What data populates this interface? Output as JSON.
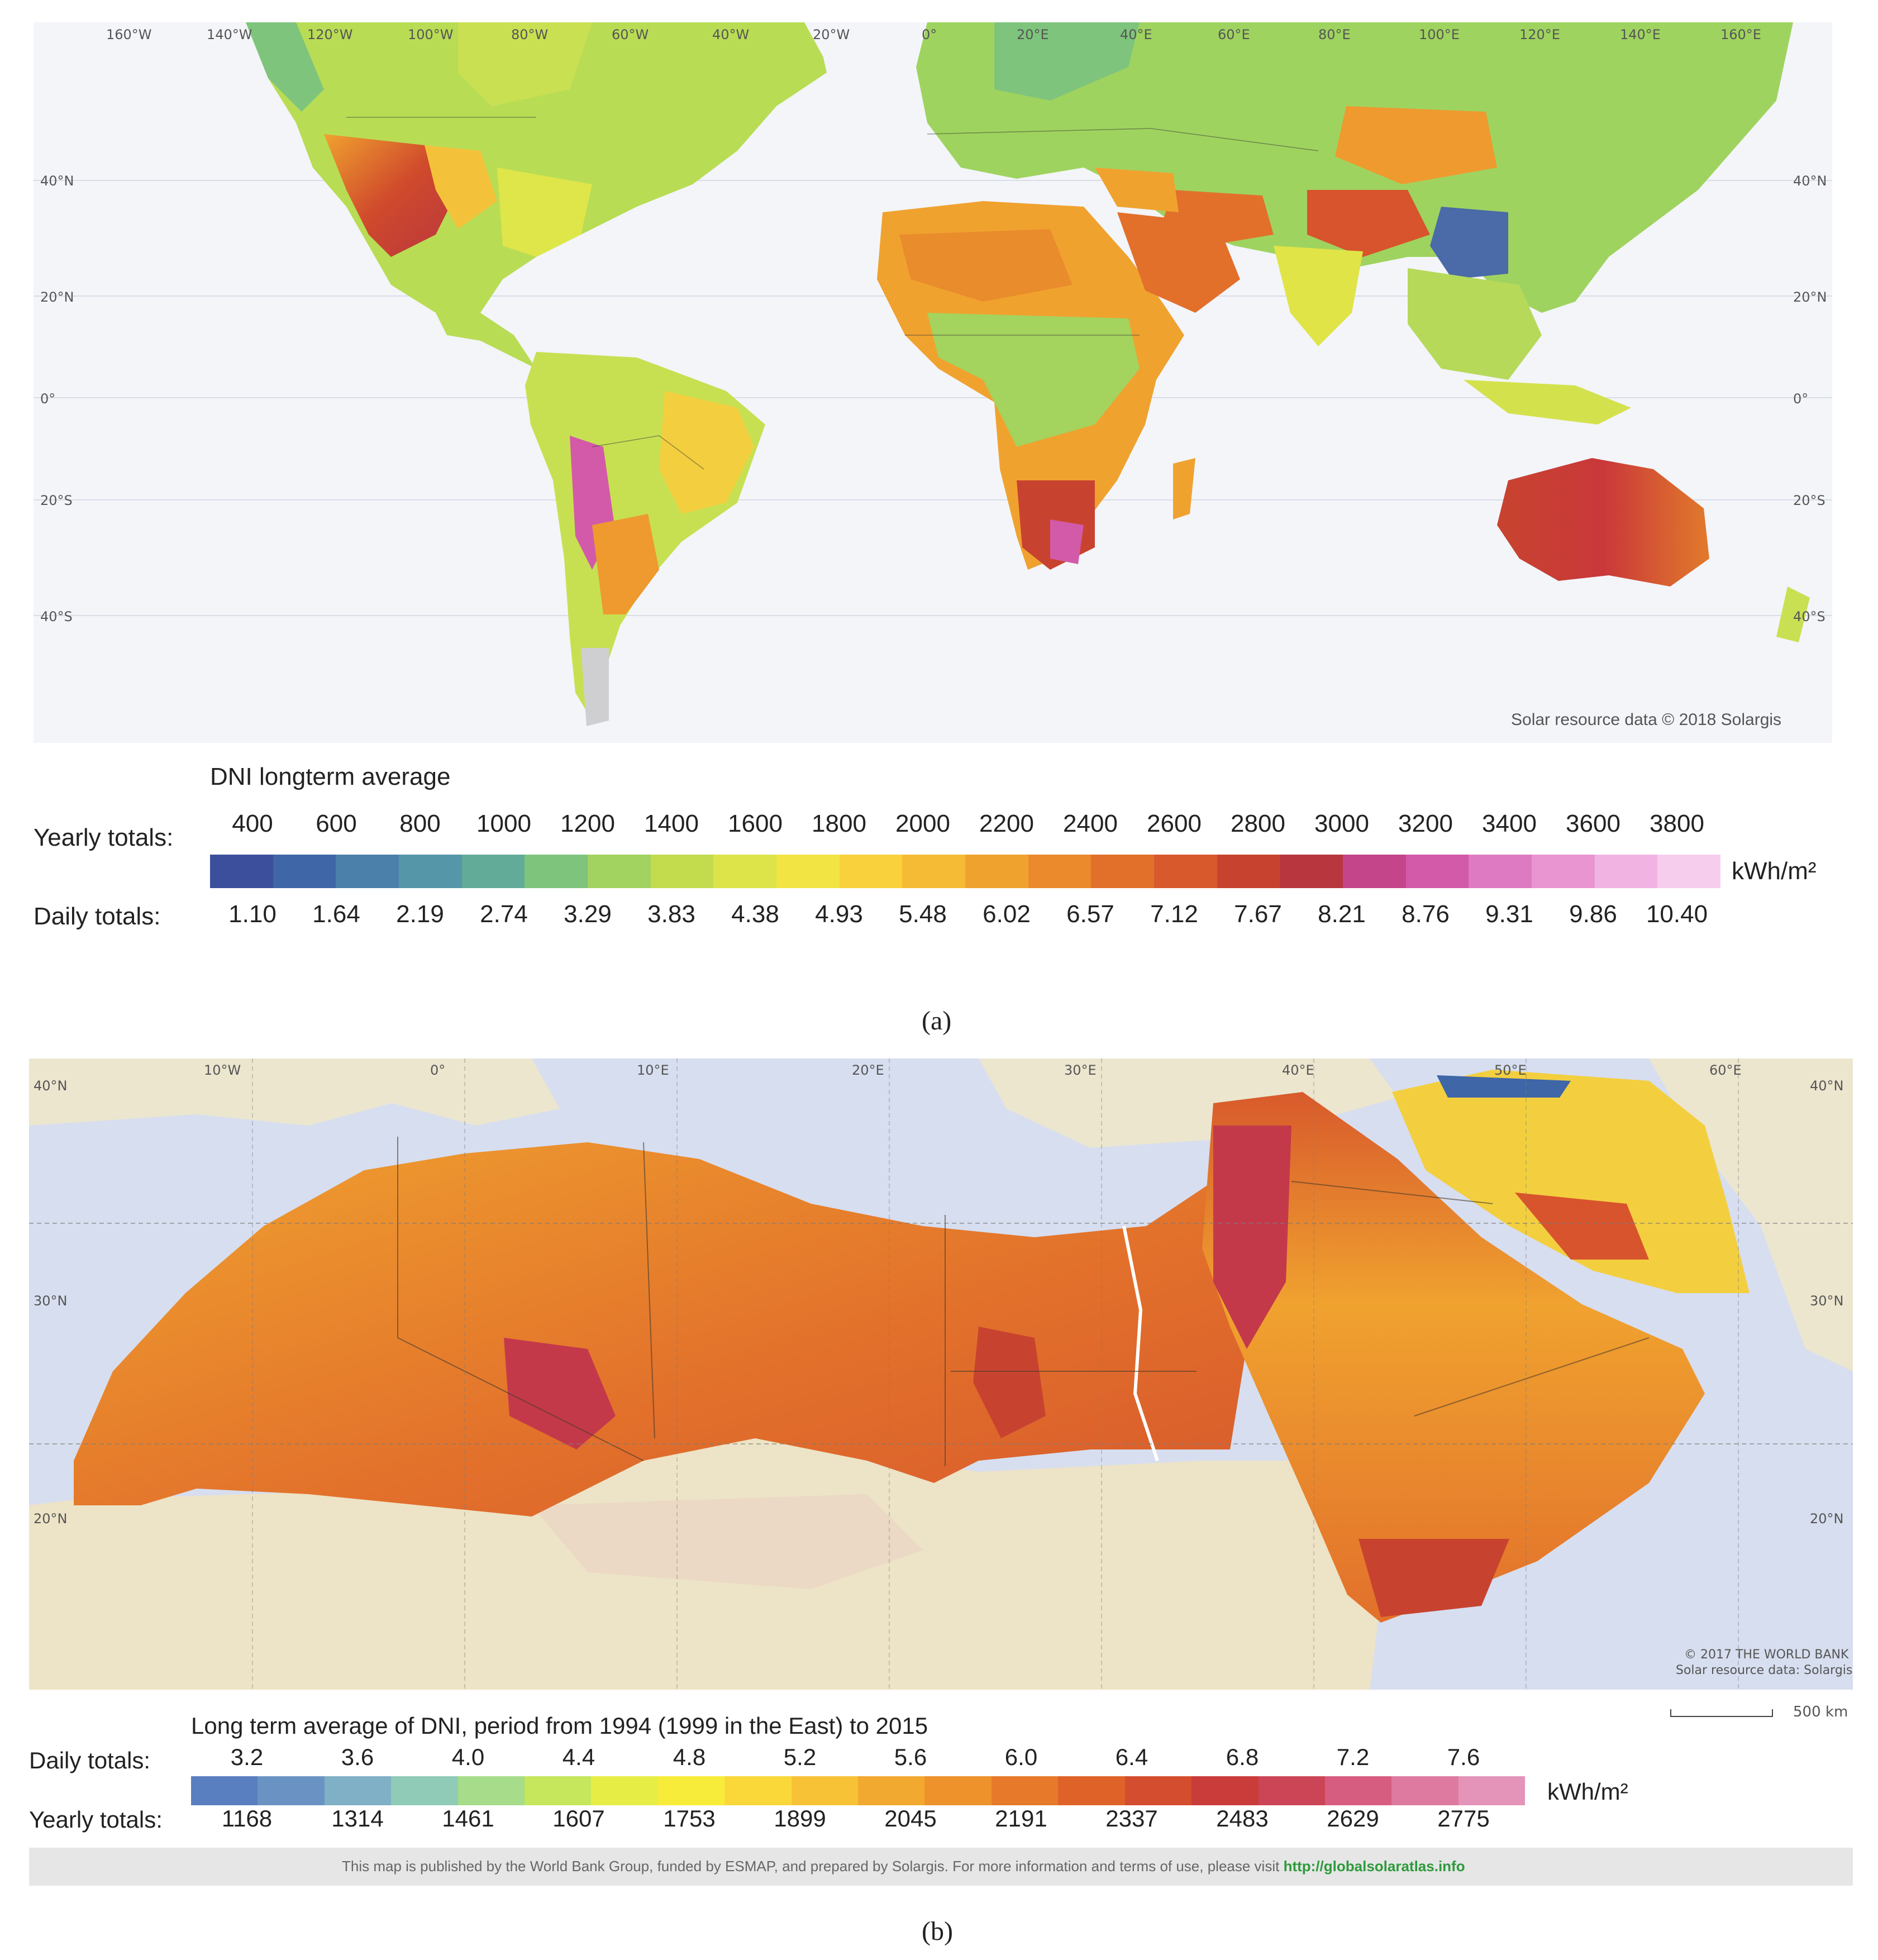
{
  "panel_a": {
    "lon_labels": [
      "160°W",
      "140°W",
      "120°W",
      "100°W",
      "80°W",
      "60°W",
      "40°W",
      "20°W",
      "0°",
      "20°E",
      "40°E",
      "60°E",
      "80°E",
      "100°E",
      "120°E",
      "140°E",
      "160°E"
    ],
    "lat_labels": [
      "40°N",
      "20°N",
      "0°",
      "20°S",
      "40°S"
    ],
    "credit": "Solar resource data © 2018 Solargis",
    "legend": {
      "title": "DNI longterm average",
      "yearly_label": "Yearly totals:",
      "daily_label": "Daily totals:",
      "yearly": [
        "400",
        "600",
        "800",
        "1000",
        "1200",
        "1400",
        "1600",
        "1800",
        "2000",
        "2200",
        "2400",
        "2600",
        "2800",
        "3000",
        "3200",
        "3400",
        "3600",
        "3800"
      ],
      "daily": [
        "1.10",
        "1.64",
        "2.19",
        "2.74",
        "3.29",
        "3.83",
        "4.38",
        "4.93",
        "5.48",
        "6.02",
        "6.57",
        "7.12",
        "7.67",
        "8.21",
        "8.76",
        "9.31",
        "9.86",
        "10.40"
      ],
      "unit": "kWh/m²",
      "colors": [
        "#3b4f9c",
        "#3f66a6",
        "#4a80aa",
        "#5596a8",
        "#63ab99",
        "#7ec47c",
        "#a2d25f",
        "#c2dc4e",
        "#dde44a",
        "#f1e443",
        "#f8d13c",
        "#f6bb35",
        "#f0a22f",
        "#ea8a2c",
        "#e2702b",
        "#d85a2c",
        "#c8432f",
        "#b8363e",
        "#c4458a",
        "#d35aa8",
        "#de7ac1",
        "#e895d2",
        "#f1b4e2",
        "#f7cdee"
      ]
    },
    "caption": "(a)"
  },
  "panel_b": {
    "lon_labels": [
      "10°W",
      "0°",
      "10°E",
      "20°E",
      "30°E",
      "40°E",
      "50°E",
      "60°E"
    ],
    "lat_labels": [
      "40°N",
      "30°N",
      "20°N"
    ],
    "credit_line1": "© 2017 THE WORLD BANK",
    "credit_line2": "Solar resource data: Solargis",
    "scale": "500 km",
    "legend": {
      "title": "Long term average of DNI, period from 1994 (1999 in the East) to 2015",
      "daily_label": "Daily totals:",
      "yearly_label": "Yearly totals:",
      "daily": [
        "3.2",
        "3.6",
        "4.0",
        "4.4",
        "4.8",
        "5.2",
        "5.6",
        "6.0",
        "6.4",
        "6.8",
        "7.2",
        "7.6"
      ],
      "yearly": [
        "1168",
        "1314",
        "1461",
        "1607",
        "1753",
        "1899",
        "2045",
        "2191",
        "2337",
        "2483",
        "2629",
        "2775"
      ],
      "unit": "kWh/m²",
      "colors": [
        "#5a7fc0",
        "#6a93c4",
        "#7fb0c6",
        "#8fcbb7",
        "#a6dc8a",
        "#c6e65c",
        "#e6ee45",
        "#f8ec3a",
        "#fad83a",
        "#f7c235",
        "#f2a92f",
        "#ee922c",
        "#e77a2a",
        "#df6329",
        "#d44d2e",
        "#c93c3a",
        "#cc4556",
        "#d65d80",
        "#de7aa0",
        "#e394b8"
      ]
    },
    "footer_text": "This map is published by the World Bank Group, funded by ESMAP, and prepared by Solargis. For more information and terms of use, please visit",
    "footer_link": "http://globalsolaratlas.info",
    "caption": "(b)"
  }
}
